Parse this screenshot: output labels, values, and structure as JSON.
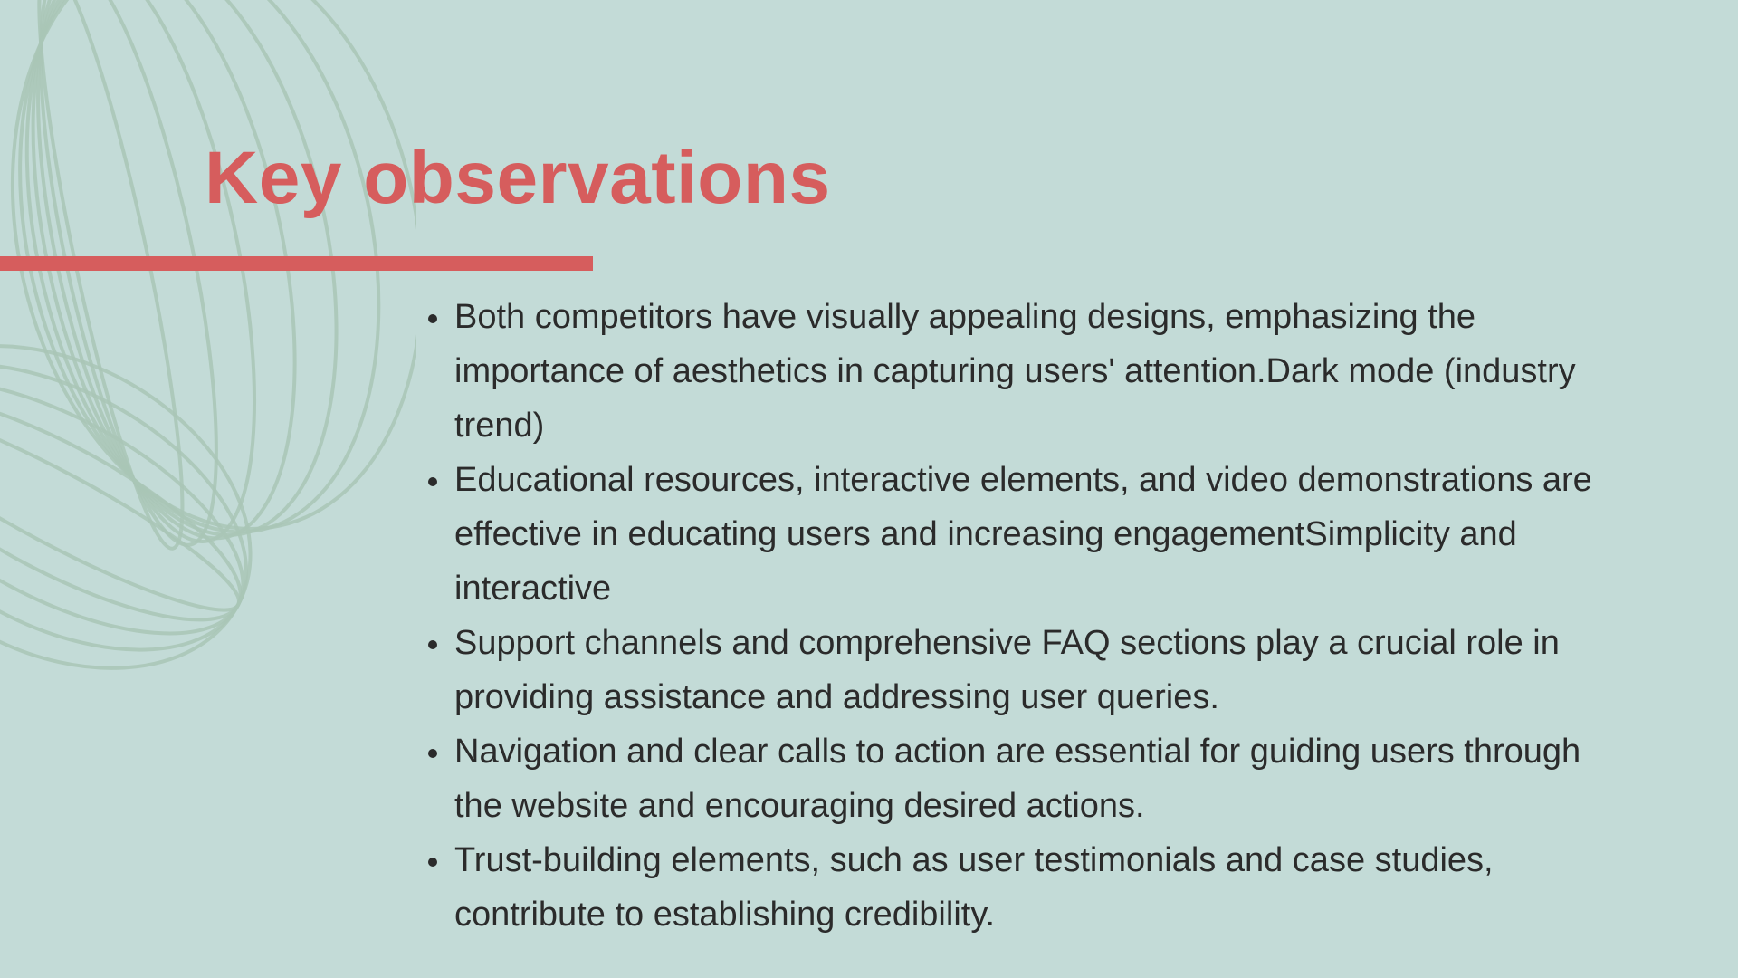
{
  "slide": {
    "title": "Key observations",
    "accent_color": "#d65d5d",
    "background_color": "#c3dbd7",
    "bullets": [
      "Both competitors have visually appealing designs, emphasizing the importance of aesthetics in capturing users' attention.Dark mode (industry trend)",
      "Educational resources, interactive elements, and video demonstrations are effective in educating users and increasing engagementSimplicity and interactive",
      "Support channels and comprehensive FAQ sections play a crucial role in providing assistance and addressing user queries.",
      "Navigation and clear calls to action are essential for guiding users through the website and encouraging desired actions.",
      "Trust-building elements, such as user testimonials and case studies, contribute to establishing credibility."
    ]
  }
}
